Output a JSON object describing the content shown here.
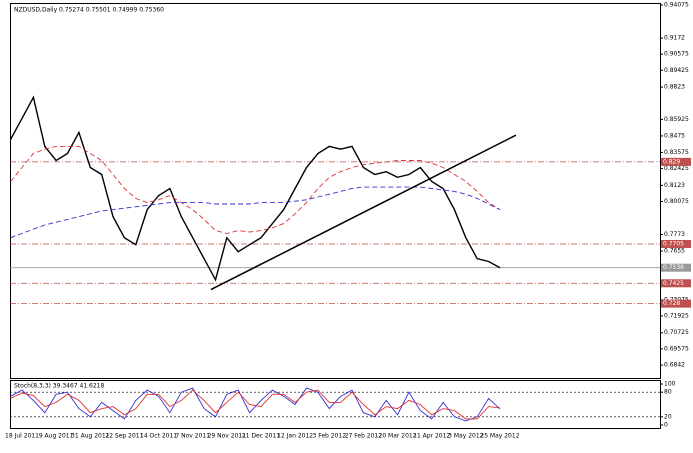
{
  "chart_data": [
    {
      "type": "line",
      "title": "NZDUSD,Daily 0.75274 0.75501 0.74999 0.75360",
      "categories": [
        null,
        "18 Jul 2011",
        null,
        null,
        "9 Aug 2011",
        null,
        null,
        "31 Aug 2011",
        null,
        null,
        "22 Sep 2011",
        null,
        null,
        "14 Oct 2011",
        null,
        null,
        "7 Nov 2011",
        null,
        null,
        "29 Nov 2011",
        null,
        null,
        "21 Dec 2011",
        null,
        null,
        "12 Jan 2012",
        null,
        null,
        "3 Feb 2012",
        null,
        null,
        "27 Feb 2012",
        null,
        null,
        "20 Mar 2012",
        null,
        null,
        "11 Apr 2012",
        null,
        null,
        "3 May 2012",
        null,
        null,
        "25 May 2012"
      ],
      "series": [
        {
          "color": "#000000",
          "style": "solid",
          "values": [
            0.845,
            0.86,
            0.875,
            0.84,
            0.83,
            0.835,
            0.85,
            0.825,
            0.82,
            0.79,
            0.775,
            0.77,
            0.795,
            0.805,
            0.81,
            0.79,
            0.775,
            0.76,
            0.745,
            0.775,
            0.765,
            0.77,
            0.775,
            0.785,
            0.795,
            0.81,
            0.825,
            0.835,
            0.84,
            0.838,
            0.84,
            0.825,
            0.82,
            0.822,
            0.818,
            0.82,
            0.825,
            0.815,
            0.81,
            0.795,
            0.775,
            0.76,
            0.758,
            0.7536
          ]
        },
        {
          "color": "#e03030",
          "style": "dashed",
          "values": [
            0.815,
            0.825,
            0.835,
            0.838,
            0.84,
            0.84,
            0.84,
            0.835,
            0.83,
            0.82,
            0.81,
            0.803,
            0.8,
            0.802,
            0.805,
            0.8,
            0.795,
            0.788,
            0.78,
            0.778,
            0.78,
            0.779,
            0.78,
            0.782,
            0.785,
            0.792,
            0.8,
            0.81,
            0.818,
            0.822,
            0.825,
            0.827,
            0.828,
            0.829,
            0.83,
            0.83,
            0.83,
            0.828,
            0.825,
            0.82,
            0.815,
            0.808,
            0.8,
            0.795
          ]
        },
        {
          "color": "#3030d0",
          "style": "dashed",
          "values": [
            0.775,
            0.778,
            0.781,
            0.784,
            0.786,
            0.788,
            0.79,
            0.792,
            0.794,
            0.795,
            0.796,
            0.797,
            0.798,
            0.799,
            0.8,
            0.8,
            0.8,
            0.8,
            0.799,
            0.799,
            0.799,
            0.799,
            0.8,
            0.8,
            0.8,
            0.801,
            0.802,
            0.804,
            0.806,
            0.808,
            0.81,
            0.811,
            0.811,
            0.811,
            0.811,
            0.811,
            0.811,
            0.81,
            0.809,
            0.808,
            0.806,
            0.803,
            0.799,
            0.795
          ]
        }
      ],
      "levels": [
        {
          "value": 0.829,
          "color": "#c0504d"
        },
        {
          "value": 0.7705,
          "color": "#c0504d"
        },
        {
          "value": 0.7536,
          "color": "#999999"
        },
        {
          "value": 0.7425,
          "color": "#c0504d"
        },
        {
          "value": 0.728,
          "color": "#c0504d"
        }
      ],
      "trendline": {
        "from": [
          17.6,
          0.738
        ],
        "to": [
          44.4,
          0.848
        ],
        "color": "#000000"
      },
      "ylim": [
        0.675,
        0.9415
      ],
      "yticks": [
        0.94075,
        0.9172,
        0.90575,
        0.89425,
        0.8823,
        0.85925,
        0.8475,
        0.83575,
        0.82425,
        0.8123,
        0.80075,
        0.7773,
        0.7655,
        0.7536,
        0.73075,
        0.71925,
        0.70725,
        0.69575,
        0.6842
      ]
    },
    {
      "type": "line",
      "title": "Stoch(8,3,3) 39.3467 41.6218",
      "series": [
        {
          "color": "#3030d0",
          "style": "solid",
          "values": [
            70,
            85,
            60,
            30,
            75,
            80,
            40,
            20,
            55,
            35,
            15,
            60,
            85,
            70,
            30,
            80,
            90,
            40,
            20,
            75,
            85,
            30,
            60,
            85,
            70,
            50,
            90,
            80,
            40,
            70,
            85,
            30,
            20,
            60,
            25,
            80,
            35,
            15,
            55,
            20,
            10,
            20,
            65,
            39.3467
          ]
        },
        {
          "color": "#e03030",
          "style": "solid",
          "values": [
            65,
            78,
            72,
            45,
            55,
            75,
            60,
            30,
            40,
            45,
            25,
            40,
            75,
            75,
            45,
            60,
            85,
            60,
            30,
            55,
            80,
            50,
            45,
            75,
            75,
            55,
            80,
            85,
            55,
            55,
            80,
            50,
            25,
            45,
            40,
            60,
            50,
            25,
            40,
            35,
            15,
            15,
            45,
            41.6218
          ]
        }
      ],
      "ylim": [
        0,
        100
      ],
      "yticks": [
        100,
        80,
        20,
        0
      ]
    }
  ]
}
